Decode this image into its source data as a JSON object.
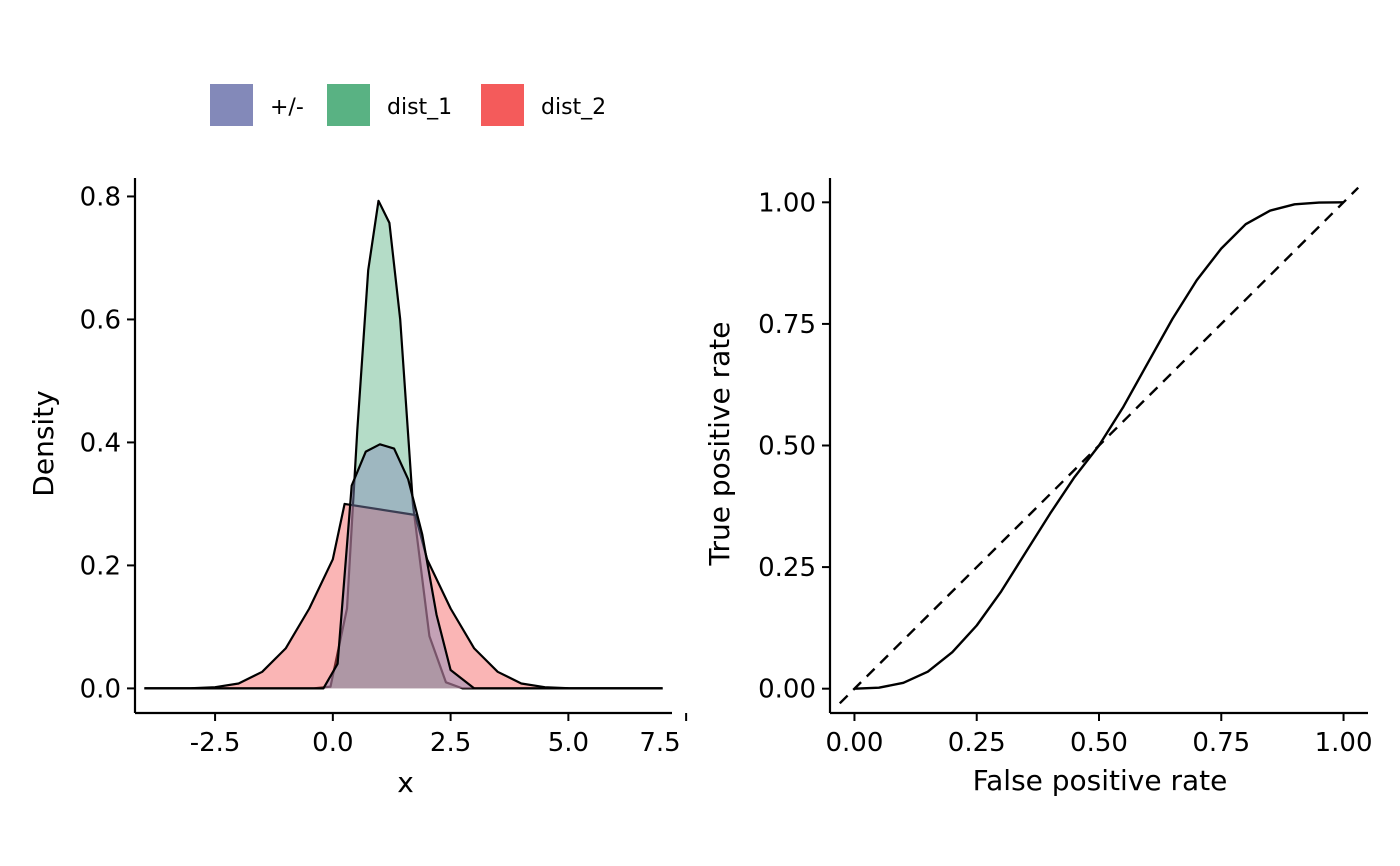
{
  "legend": {
    "entries": [
      {
        "label": "+/-",
        "color": "#8389B9"
      },
      {
        "label": "dist_1",
        "color": "#59B283"
      },
      {
        "label": "dist_2",
        "color": "#F45B5B"
      }
    ],
    "position": "top"
  },
  "chart_data": [
    {
      "type": "area",
      "title": "",
      "xlabel": "x",
      "ylabel": "Density",
      "xlim": [
        -4.2,
        7.2
      ],
      "ylim": [
        -0.04,
        0.83
      ],
      "xticks": [
        -2.5,
        0.0,
        2.5,
        5.0,
        7.5
      ],
      "xtick_labels": [
        "-2.5",
        "0.0",
        "2.5",
        "5.0",
        "7.5"
      ],
      "yticks": [
        0.0,
        0.2,
        0.4,
        0.6,
        0.8
      ],
      "ytick_labels": [
        "0.0",
        "0.2",
        "0.4",
        "0.6",
        "0.8"
      ],
      "grid": false,
      "series": [
        {
          "name": "dist_1",
          "color": "#59B283",
          "x": [
            -4.0,
            -3.55,
            -3.1,
            -2.65,
            -2.2,
            -1.75,
            -1.3,
            -0.85,
            -0.4,
            -0.05,
            0.3,
            0.52,
            0.75,
            0.97,
            1.2,
            1.43,
            1.7,
            2.05,
            2.4,
            2.75,
            3.1,
            3.5,
            4.0,
            5.0,
            6.0,
            7.0
          ],
          "values": [
            0.0,
            0.0,
            0.0,
            0.0,
            0.0,
            0.0,
            0.0,
            0.0,
            0.0,
            0.003,
            0.13,
            0.42,
            0.68,
            0.793,
            0.757,
            0.6,
            0.3,
            0.085,
            0.01,
            0.0,
            0.0,
            0.0,
            0.0,
            0.0,
            0.0,
            0.0
          ]
        },
        {
          "name": "dist_2",
          "color": "#F45B5B",
          "x": [
            -4.0,
            -3.5,
            -3.0,
            -2.5,
            -2.0,
            -1.5,
            -1.0,
            -0.5,
            0.0,
            0.25,
            1.75,
            2.0,
            2.5,
            3.0,
            3.5,
            4.0,
            4.5,
            5.0,
            5.5,
            6.0,
            6.5,
            7.0
          ],
          "values": [
            0.0,
            0.0001,
            0.0004,
            0.002,
            0.008,
            0.027,
            0.065,
            0.13,
            0.21,
            0.3,
            0.282,
            0.21,
            0.13,
            0.065,
            0.027,
            0.008,
            0.002,
            0.0004,
            0.0001,
            0.0,
            0.0,
            0.0
          ]
        },
        {
          "name": "+/-",
          "color": "#8389B9",
          "x": [
            -4.0,
            -3.5,
            -3.0,
            -2.5,
            -2.0,
            -1.5,
            -1.0,
            -0.5,
            -0.2,
            0.1,
            0.4,
            0.7,
            1.0,
            1.3,
            1.6,
            1.9,
            2.2,
            2.5,
            3.0,
            3.5,
            4.0,
            4.5,
            5.0,
            5.5,
            6.0,
            6.5,
            7.0
          ],
          "values": [
            0.0,
            0.0,
            0.0,
            0.0,
            0.0,
            0.0,
            0.0,
            0.0,
            0.0,
            0.04,
            0.33,
            0.385,
            0.397,
            0.39,
            0.34,
            0.25,
            0.12,
            0.03,
            0.0,
            0.0,
            0.0,
            0.0,
            0.0,
            0.0,
            0.0,
            0.0,
            0.0
          ]
        }
      ]
    },
    {
      "type": "line",
      "title": "",
      "xlabel": "False positive rate",
      "ylabel": "True positive rate",
      "xlim": [
        -0.05,
        1.05
      ],
      "ylim": [
        -0.05,
        1.05
      ],
      "xticks": [
        0.0,
        0.25,
        0.5,
        0.75,
        1.0
      ],
      "xtick_labels": [
        "0.00",
        "0.25",
        "0.50",
        "0.75",
        "1.00"
      ],
      "yticks": [
        0.0,
        0.25,
        0.5,
        0.75,
        1.0
      ],
      "ytick_labels": [
        "0.00",
        "0.25",
        "0.50",
        "0.75",
        "1.00"
      ],
      "grid": false,
      "series": [
        {
          "style": "solid",
          "x": [
            0.0,
            0.05,
            0.1,
            0.15,
            0.2,
            0.25,
            0.3,
            0.35,
            0.4,
            0.45,
            0.5,
            0.55,
            0.6,
            0.65,
            0.7,
            0.75,
            0.8,
            0.85,
            0.9,
            0.95,
            1.0
          ],
          "values": [
            0.0,
            0.002,
            0.012,
            0.035,
            0.075,
            0.13,
            0.2,
            0.28,
            0.36,
            0.435,
            0.5,
            0.58,
            0.67,
            0.76,
            0.84,
            0.905,
            0.955,
            0.983,
            0.996,
            0.9995,
            1.0
          ]
        },
        {
          "style": "dashed",
          "x": [
            -0.03,
            1.03
          ],
          "values": [
            -0.03,
            1.03
          ]
        }
      ]
    }
  ]
}
